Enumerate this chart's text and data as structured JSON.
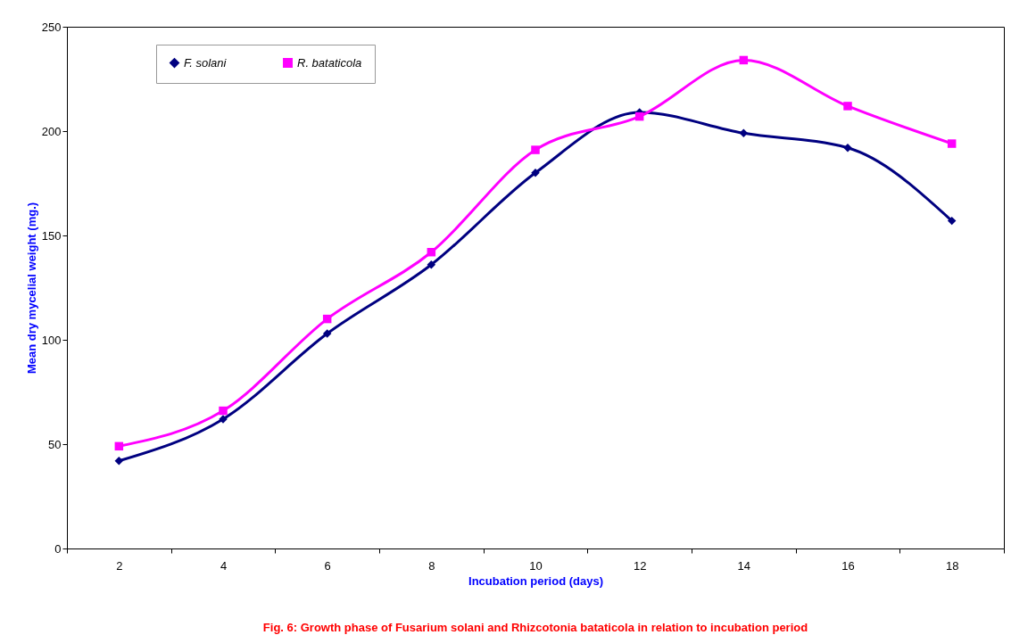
{
  "chart_data": {
    "type": "line",
    "title": "Fig. 6: Growth phase of Fusarium solani and Rhizcotonia bataticola in relation to  incubation period",
    "xlabel": "Incubation period (days)",
    "ylabel": "Mean dry mycelial weight (mg.)",
    "categories": [
      "2",
      "4",
      "6",
      "8",
      "10",
      "12",
      "14",
      "16",
      "18"
    ],
    "series": [
      {
        "name": "F. solani",
        "color": "#000080",
        "marker": "diamond",
        "values": [
          42,
          62,
          103,
          136,
          180,
          209,
          199,
          192,
          157
        ]
      },
      {
        "name": "R. bataticola",
        "color": "#ff00ff",
        "marker": "square",
        "values": [
          49,
          66,
          110,
          142,
          191,
          207,
          234,
          212,
          194
        ]
      }
    ],
    "ylim": [
      0,
      250
    ],
    "yticks": [
      0,
      50,
      100,
      150,
      200,
      250
    ],
    "grid": false,
    "legend": "top left"
  }
}
